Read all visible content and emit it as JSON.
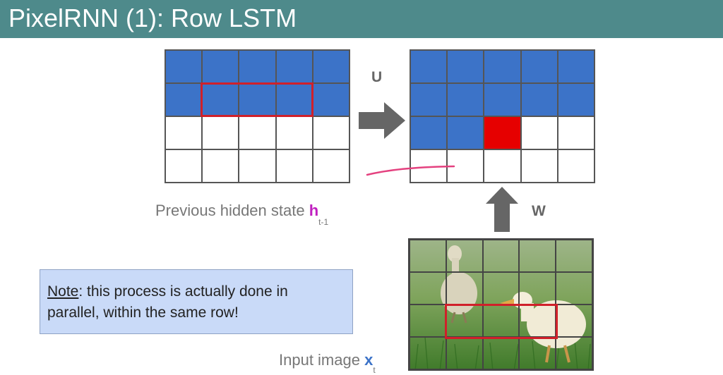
{
  "header": {
    "title": "PixelRNN (1): Row LSTM"
  },
  "labels": {
    "u": "U",
    "w": "W",
    "prev_hidden_prefix": "Previous hidden state ",
    "prev_hidden_symbol": "h",
    "prev_hidden_sub": "t-1",
    "input_prefix": "Input image ",
    "input_symbol": "x",
    "input_sub": "t"
  },
  "note": {
    "heading": "Note",
    "text": ": this process is actually done in parallel, within the same row!"
  },
  "colors": {
    "header": "#4e8a8b",
    "filled_cell": "#3c73c8",
    "current_cell": "#e60000",
    "highlight": "#d0202a",
    "note_bg": "#c9daf8",
    "h_symbol": "#c020c0",
    "x_symbol": "#3c73c8"
  },
  "grids": {
    "previous_hidden_state": {
      "rows": [
        [
          "blue",
          "blue",
          "blue",
          "blue",
          "blue"
        ],
        [
          "blue",
          "blue",
          "blue",
          "blue",
          "blue"
        ],
        [
          "white",
          "white",
          "white",
          "white",
          "white"
        ],
        [
          "white",
          "white",
          "white",
          "white",
          "white"
        ]
      ]
    },
    "current_hidden_state": {
      "rows": [
        [
          "blue",
          "blue",
          "blue",
          "blue",
          "blue"
        ],
        [
          "blue",
          "blue",
          "blue",
          "blue",
          "blue"
        ],
        [
          "blue",
          "blue",
          "red",
          "white",
          "white"
        ],
        [
          "white",
          "white",
          "white",
          "white",
          "white"
        ]
      ]
    }
  }
}
